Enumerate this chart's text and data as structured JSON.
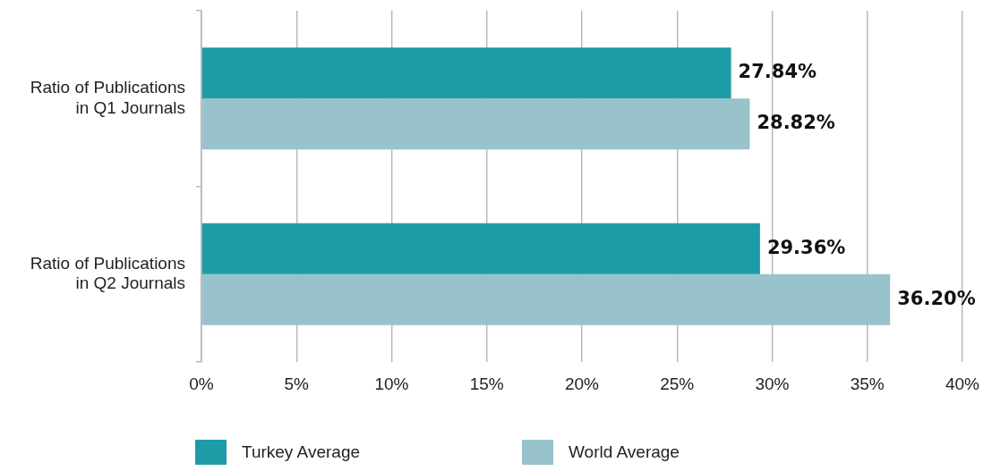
{
  "chart_data": {
    "type": "bar",
    "orientation": "horizontal",
    "categories": [
      "Ratio of Publications in Q1 Journals",
      "Ratio of Publications in Q2 Journals"
    ],
    "series": [
      {
        "name": "Turkey Average",
        "color": "#1d9ca7",
        "values": [
          27.84,
          29.36
        ],
        "value_labels": [
          "27.84%",
          "29.36%"
        ]
      },
      {
        "name": "World Average",
        "color": "#98c3ca",
        "values": [
          28.82,
          36.2
        ],
        "value_labels": [
          "28.82%",
          "36.20%"
        ]
      }
    ],
    "xlim": [
      0,
      40
    ],
    "xticks": [
      {
        "value": 0,
        "label": "0%"
      },
      {
        "value": 5,
        "label": "5%"
      },
      {
        "value": 10,
        "label": "10%"
      },
      {
        "value": 15,
        "label": "15%"
      },
      {
        "value": 20,
        "label": "20%"
      },
      {
        "value": 25,
        "label": "25%"
      },
      {
        "value": 30,
        "label": "30%"
      },
      {
        "value": 35,
        "label": "35%"
      },
      {
        "value": 40,
        "label": "40%"
      }
    ],
    "grid": "x",
    "legend": "bottom"
  }
}
